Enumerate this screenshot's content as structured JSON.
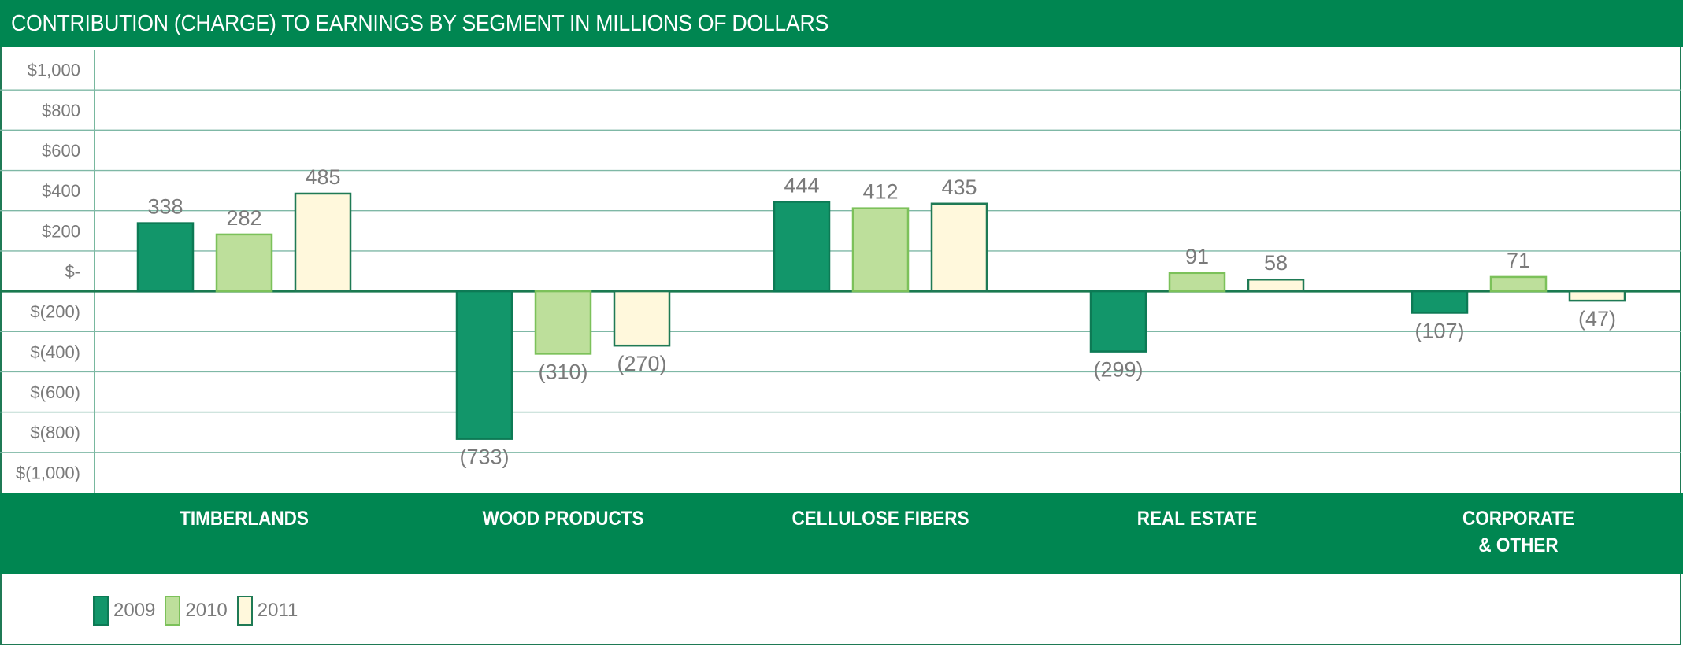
{
  "header": {
    "title": "CONTRIBUTION (CHARGE) TO EARNINGS BY SEGMENT IN MILLIONS OF DOLLARS"
  },
  "colors": {
    "brand_green": "#008651",
    "grid": "#1f8a5e",
    "series_2009_fill": "#12966a",
    "series_2009_stroke": "#0d7a55",
    "series_2010_fill": "#bddf9b",
    "series_2010_stroke": "#7cc15a",
    "series_2011_fill": "#fff8dc",
    "series_2011_stroke": "#1f7a55",
    "label_gray": "#7a7a7a"
  },
  "chart_data": {
    "type": "bar",
    "title": "CONTRIBUTION (CHARGE) TO EARNINGS BY SEGMENT IN MILLIONS OF DOLLARS",
    "xlabel": "",
    "ylabel": "",
    "ylim": [
      -1000,
      1000
    ],
    "grid": true,
    "legend_position": "bottom-left",
    "categories": [
      "TIMBERLANDS",
      "WOOD PRODUCTS",
      "CELLULOSE FIBERS",
      "REAL ESTATE",
      "CORPORATE\n& OTHER"
    ],
    "y_ticks": [
      1000,
      800,
      600,
      400,
      200,
      0,
      -200,
      -400,
      -600,
      -800,
      -1000
    ],
    "y_tick_labels": [
      "$1,000",
      "$800",
      "$600",
      "$400",
      "$200",
      "$-",
      "$(200)",
      "$(400)",
      "$(600)",
      "$(800)",
      "$(1,000)"
    ],
    "series": [
      {
        "name": "2009",
        "values": [
          338,
          -733,
          444,
          -299,
          -107
        ],
        "labels": [
          "338",
          "(733)",
          "444",
          "(299)",
          "(107)"
        ]
      },
      {
        "name": "2010",
        "values": [
          282,
          -310,
          412,
          91,
          71
        ],
        "labels": [
          "282",
          "(310)",
          "412",
          "91",
          "71"
        ]
      },
      {
        "name": "2011",
        "values": [
          485,
          -270,
          435,
          58,
          -47
        ],
        "labels": [
          "485",
          "(270)",
          "435",
          "58",
          "(47)"
        ]
      }
    ]
  }
}
